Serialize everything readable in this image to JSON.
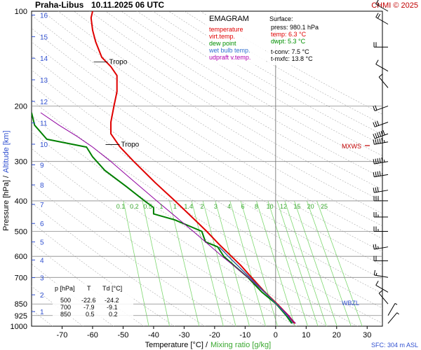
{
  "header": {
    "station": "Praha-Libus",
    "time": "10.11.2025 06 UTC",
    "credit": "CHMI © 2025"
  },
  "legend": {
    "title": "EMAGRAM",
    "items": [
      {
        "label": "temperature",
        "color": "#e00000"
      },
      {
        "label": "virt.temp.",
        "color": "#e00000"
      },
      {
        "label": "dew point",
        "color": "#009000"
      },
      {
        "label": "wet bulb temp.",
        "color": "#3070d0"
      },
      {
        "label": "udpraft v.temp.",
        "color": "#b000b0"
      }
    ]
  },
  "surface_box": {
    "title": "Surface:",
    "press": "press: 980.1 hPa",
    "temp": "temp: 6.3 °C",
    "dwpt": "dwpt: 5.3 °C",
    "tconv": "t-conv: 7.5 °C",
    "tmxfc": "t-mxfc: 13.8 °C"
  },
  "table": {
    "headers": [
      "p [hPa]",
      "T",
      "Td [°C]"
    ],
    "rows": [
      [
        "500",
        "-22.6",
        "-24.2"
      ],
      [
        "700",
        "-7.9",
        "-9.1"
      ],
      [
        "850",
        "0.5",
        "0.2"
      ]
    ]
  },
  "annotations": {
    "tropo_label": "Tropo",
    "mxws": "MXWS",
    "wbzl": "WBZL",
    "sfc": "SFC: 304 m ASL"
  },
  "axes": {
    "y_label": "Pressure [hPa]  /",
    "y_label_alt": "Altitude [km]",
    "x_label": "Temperature [°C]  /",
    "x_label_alt": "Mixing ratio [g/kg]"
  },
  "colors": {
    "temperature": "#e00000",
    "dew_point": "#008000",
    "wet_bulb": "#3060a0",
    "parcel": "#9000a0",
    "mixing_ratio": "#7ed870",
    "dry_adiabat": "#aaaaaa",
    "grid": "#888888",
    "altitude": "#3050d0"
  },
  "chart_data": {
    "type": "line",
    "y_scale": "log-pressure",
    "ylim_hpa": [
      1000,
      100
    ],
    "xlim_c": [
      -80,
      35
    ],
    "x_ticks": [
      -70,
      -60,
      -50,
      -40,
      -30,
      -20,
      -10,
      0,
      10,
      20,
      30
    ],
    "y_ticks": [
      100,
      200,
      300,
      400,
      500,
      600,
      700,
      850,
      925,
      1000
    ],
    "altitude_ticks_km": [
      1,
      2,
      3,
      4,
      5,
      6,
      7,
      8,
      9,
      10,
      11,
      12,
      13,
      14,
      15,
      16
    ],
    "mixing_ratio_labels": [
      "0.1",
      "0.2",
      "0.5",
      "1",
      "1",
      "1.4",
      "2",
      "3",
      "4",
      "6",
      "8",
      "10",
      "12",
      "15",
      "20",
      "25"
    ],
    "series": [
      {
        "name": "temperature",
        "points": [
          [
            980,
            6.3
          ],
          [
            925,
            4.2
          ],
          [
            850,
            0.5
          ],
          [
            780,
            -3.5
          ],
          [
            700,
            -7.9
          ],
          [
            640,
            -11.5
          ],
          [
            600,
            -14.5
          ],
          [
            550,
            -18.5
          ],
          [
            500,
            -22.6
          ],
          [
            450,
            -27.5
          ],
          [
            400,
            -33
          ],
          [
            350,
            -39.5
          ],
          [
            300,
            -46.5
          ],
          [
            270,
            -51
          ],
          [
            245,
            -54
          ],
          [
            225,
            -54
          ],
          [
            200,
            -53
          ],
          [
            180,
            -52
          ],
          [
            160,
            -52
          ],
          [
            150,
            -54
          ],
          [
            140,
            -57
          ],
          [
            125,
            -59
          ],
          [
            115,
            -60
          ],
          [
            105,
            -60.5
          ],
          [
            100,
            -60
          ]
        ]
      },
      {
        "name": "dew point",
        "points": [
          [
            980,
            5.3
          ],
          [
            925,
            3.5
          ],
          [
            850,
            0.2
          ],
          [
            780,
            -4.5
          ],
          [
            700,
            -9.1
          ],
          [
            650,
            -13
          ],
          [
            600,
            -17
          ],
          [
            560,
            -19
          ],
          [
            540,
            -23
          ],
          [
            500,
            -24.2
          ],
          [
            460,
            -33
          ],
          [
            440,
            -40
          ],
          [
            420,
            -40
          ],
          [
            400,
            -43
          ],
          [
            360,
            -49
          ],
          [
            320,
            -56
          ],
          [
            290,
            -60
          ],
          [
            270,
            -62
          ],
          [
            255,
            -75
          ],
          [
            230,
            -79
          ],
          [
            210,
            -80
          ]
        ]
      },
      {
        "name": "udpraft v.temp.",
        "points": [
          [
            980,
            6.6
          ],
          [
            900,
            3.0
          ],
          [
            800,
            -2.5
          ],
          [
            700,
            -9.0
          ],
          [
            600,
            -17.5
          ],
          [
            500,
            -27
          ],
          [
            400,
            -39
          ],
          [
            350,
            -46
          ],
          [
            300,
            -54
          ],
          [
            270,
            -60
          ],
          [
            250,
            -65
          ],
          [
            230,
            -71
          ],
          [
            210,
            -77
          ]
        ]
      },
      {
        "name": "wet bulb temp.",
        "points": [
          [
            980,
            5.8
          ],
          [
            925,
            3.8
          ],
          [
            850,
            0.3
          ],
          [
            700,
            -8.5
          ],
          [
            600,
            -15.5
          ],
          [
            560,
            -18.5
          ]
        ]
      }
    ],
    "tropopause_hpa": [
      145,
      265
    ],
    "mxws_hpa": 260,
    "wbzl_hpa": 840,
    "wind_barbs": [
      {
        "p": 100,
        "dir": 300,
        "spd": 15
      },
      {
        "p": 110,
        "dir": 300,
        "spd": 20
      },
      {
        "p": 130,
        "dir": 270,
        "spd": 20
      },
      {
        "p": 155,
        "dir": 300,
        "spd": 10
      },
      {
        "p": 175,
        "dir": 320,
        "spd": 10
      },
      {
        "p": 200,
        "dir": 250,
        "spd": 20
      },
      {
        "p": 225,
        "dir": 250,
        "spd": 30
      },
      {
        "p": 245,
        "dir": 250,
        "spd": 60
      },
      {
        "p": 260,
        "dir": 260,
        "spd": 55
      },
      {
        "p": 300,
        "dir": 260,
        "spd": 55
      },
      {
        "p": 330,
        "dir": 260,
        "spd": 45
      },
      {
        "p": 370,
        "dir": 260,
        "spd": 30
      },
      {
        "p": 400,
        "dir": 270,
        "spd": 30
      },
      {
        "p": 450,
        "dir": 270,
        "spd": 25
      },
      {
        "p": 500,
        "dir": 270,
        "spd": 25
      },
      {
        "p": 560,
        "dir": 260,
        "spd": 25
      },
      {
        "p": 620,
        "dir": 270,
        "spd": 20
      },
      {
        "p": 700,
        "dir": 280,
        "spd": 15
      },
      {
        "p": 780,
        "dir": 300,
        "spd": 10
      },
      {
        "p": 850,
        "dir": 320,
        "spd": 10
      },
      {
        "p": 925,
        "dir": 30,
        "spd": 5
      },
      {
        "p": 980,
        "dir": 40,
        "spd": 5
      }
    ]
  }
}
